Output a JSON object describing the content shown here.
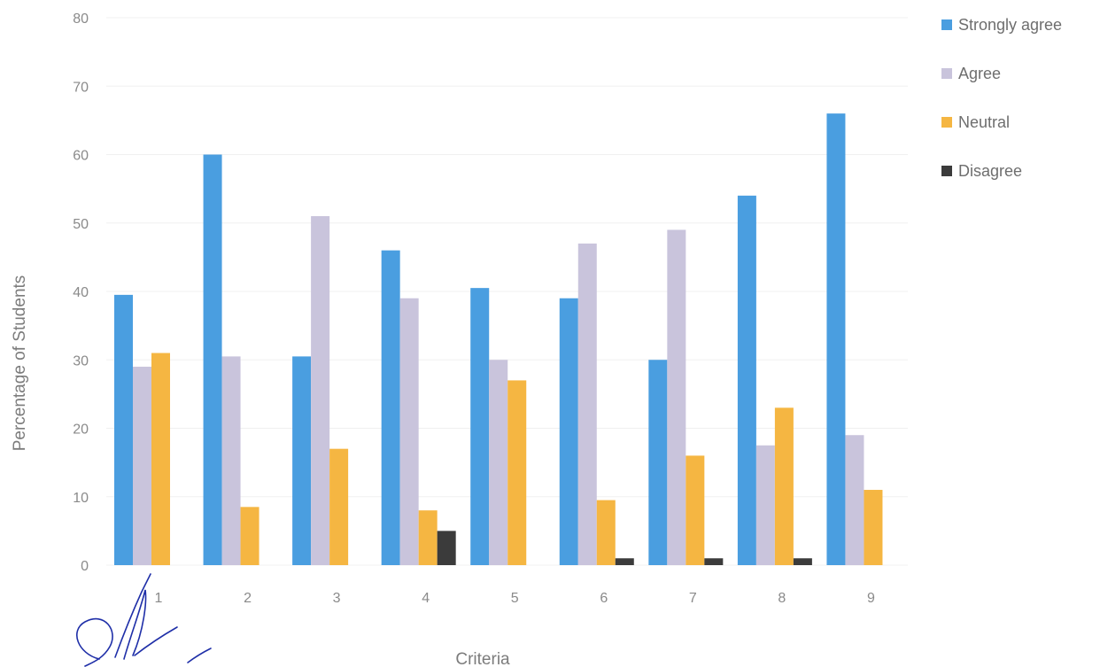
{
  "chart_data": {
    "type": "bar",
    "title": "",
    "xlabel": "Criteria",
    "ylabel": "Percentage of Students",
    "categories": [
      "1",
      "2",
      "3",
      "4",
      "5",
      "6",
      "7",
      "8",
      "9"
    ],
    "ylim": [
      0,
      80
    ],
    "yticks": [
      "0",
      "10",
      "20",
      "30",
      "40",
      "50",
      "60",
      "70",
      "80"
    ],
    "grid": true,
    "legend_position": "top-right",
    "series": [
      {
        "name": "Strongly agree",
        "color": "#4a9ee0",
        "values": [
          39.5,
          60,
          30.5,
          46,
          40.5,
          39,
          30,
          54,
          66
        ]
      },
      {
        "name": "Agree",
        "color": "#c9c4dc",
        "values": [
          29,
          30.5,
          51,
          39,
          30,
          47,
          49,
          17.5,
          19
        ]
      },
      {
        "name": "Neutral",
        "color": "#f5b642",
        "values": [
          31,
          8.5,
          17,
          8,
          27,
          9.5,
          16,
          23,
          11
        ]
      },
      {
        "name": "Disagree",
        "color": "#3b3b3b",
        "values": [
          0,
          0,
          0,
          5,
          0,
          1,
          1,
          1,
          0
        ]
      }
    ]
  },
  "signature": {
    "kind": "handwritten-signature",
    "color": "#1f2fa8"
  }
}
